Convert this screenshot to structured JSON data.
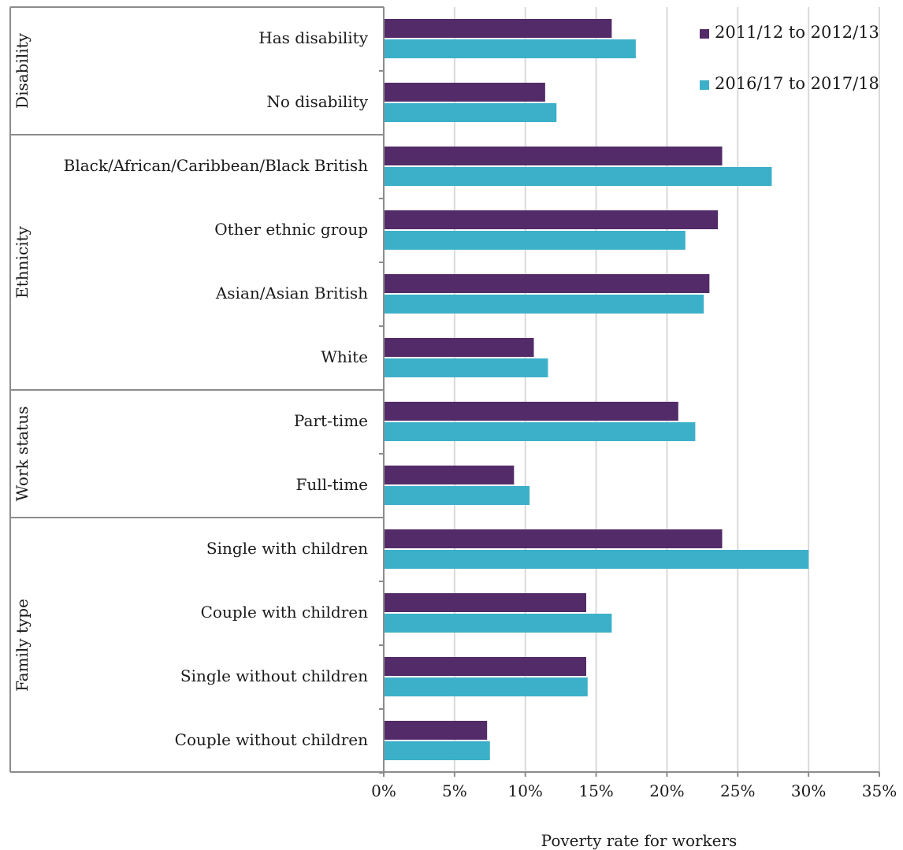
{
  "chart_data": {
    "type": "bar",
    "orientation": "horizontal",
    "title": "",
    "xlabel": "Poverty rate for workers",
    "ylabel": "",
    "xlim": [
      0,
      35
    ],
    "x_ticks": [
      "0%",
      "5%",
      "10%",
      "15%",
      "20%",
      "25%",
      "30%",
      "35%"
    ],
    "grid": "vertical",
    "legend_position": "top-right",
    "groups": [
      {
        "name": "Disability",
        "categories": [
          "Has disability",
          "No disability"
        ]
      },
      {
        "name": "Ethnicity",
        "categories": [
          "Black/African/Caribbean/Black British",
          "Other ethnic group",
          "Asian/Asian British",
          "White"
        ]
      },
      {
        "name": "Work status",
        "categories": [
          "Part-time",
          "Full-time"
        ]
      },
      {
        "name": "Family type",
        "categories": [
          "Single with children",
          "Couple with children",
          "Single without children",
          "Couple without children"
        ]
      }
    ],
    "categories": [
      "Has disability",
      "No disability",
      "Black/African/Caribbean/Black British",
      "Other ethnic group",
      "Asian/Asian British",
      "White",
      "Part-time",
      "Full-time",
      "Single with children",
      "Couple with children",
      "Single without children",
      "Couple without children"
    ],
    "series": [
      {
        "name": "2011/12 to 2012/13",
        "color": "#532b68",
        "values": [
          16.1,
          11.4,
          23.9,
          23.6,
          23.0,
          10.6,
          20.8,
          9.2,
          23.9,
          14.3,
          14.3,
          7.3
        ]
      },
      {
        "name": "2016/17 to 2017/18",
        "color": "#3db0c9",
        "values": [
          17.8,
          12.2,
          27.4,
          21.3,
          22.6,
          11.6,
          22.0,
          10.3,
          30.0,
          16.1,
          14.4,
          7.5
        ]
      }
    ]
  }
}
